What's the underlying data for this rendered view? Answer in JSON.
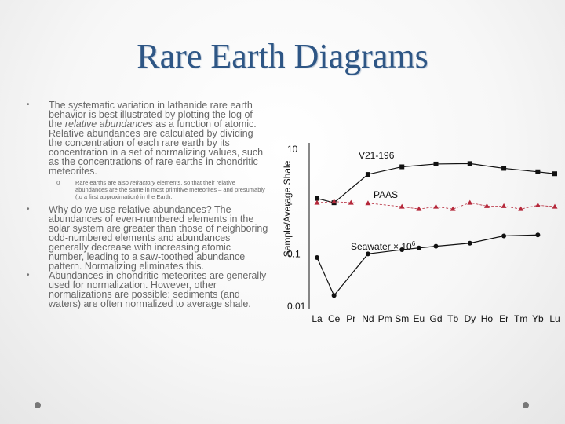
{
  "slide": {
    "title": "Rare Earth Diagrams",
    "bullet1_a": "The systematic variation in lathanide rare earth behavior is best illustrated by plotting the log of the ",
    "bullet1_em": "relative abundances",
    "bullet1_b": " as a function of atomic. Relative abundances are calculated by dividing the concentration of each rare earth by its concentration in a set of normalizing values, such as the concentrations of rare earths in chondritic meteorites.",
    "sub_a": "Rare earths are also ",
    "sub_em": "refractory",
    "sub_b": " elements, so that their relative abundances are the same in most primitive meteorites – and presumably (to a first approximation) in the Earth.",
    "bullet2": "Why do we use relative abundances? The abundances of even-numbered elements in the solar system are greater than those of neighboring odd-numbered elements and abundances generally decrease with increasing atomic number, leading to a saw-toothed abundance pattern. Normalizing eliminates this.",
    "bullet3": "Abundances in chondritic meteorites are generally used for normalization. However, other normalizations are possible: sediments (and waters) are often normalized to average shale.",
    "bullet_glyph": "•",
    "sub_glyph": "o"
  },
  "chart_data": {
    "type": "line",
    "x": [
      "La",
      "Ce",
      "Pr",
      "Nd",
      "Pm",
      "Sm",
      "Eu",
      "Gd",
      "Tb",
      "Dy",
      "Ho",
      "Er",
      "Tm",
      "Yb",
      "Lu"
    ],
    "ylabel": "Sample/Average Shale",
    "y_scale": "log",
    "ylim": [
      0.01,
      10
    ],
    "yticks": [
      "10",
      "1",
      "0.1",
      "0.01"
    ],
    "series": [
      {
        "name": "V21-196",
        "color": "#111111",
        "marker": "square",
        "points": [
          [
            "La",
            1.15
          ],
          [
            "Ce",
            0.95
          ],
          [
            "Nd",
            3.3
          ],
          [
            "Sm",
            4.6
          ],
          [
            "Gd",
            5.2
          ],
          [
            "Dy",
            5.3
          ],
          [
            "Er",
            4.3
          ],
          [
            "Yb",
            3.7
          ],
          [
            "Lu",
            3.4
          ]
        ]
      },
      {
        "name": "PAAS",
        "color": "#b5283a",
        "marker": "triangle",
        "points": [
          [
            "La",
            0.95
          ],
          [
            "Ce",
            1.0
          ],
          [
            "Pr",
            0.95
          ],
          [
            "Nd",
            0.93
          ],
          [
            "Sm",
            0.8
          ],
          [
            "Eu",
            0.72
          ],
          [
            "Gd",
            0.8
          ],
          [
            "Tb",
            0.72
          ],
          [
            "Dy",
            0.95
          ],
          [
            "Ho",
            0.82
          ],
          [
            "Er",
            0.82
          ],
          [
            "Tm",
            0.72
          ],
          [
            "Yb",
            0.85
          ],
          [
            "Lu",
            0.8
          ]
        ]
      },
      {
        "name": "Seawater × 10",
        "superscript": "6",
        "color": "#111111",
        "marker": "circle",
        "points": [
          [
            "La",
            0.085
          ],
          [
            "Ce",
            0.016
          ],
          [
            "Nd",
            0.1
          ],
          [
            "Sm",
            0.12
          ],
          [
            "Eu",
            0.13
          ],
          [
            "Gd",
            0.14
          ],
          [
            "Dy",
            0.16
          ],
          [
            "Er",
            0.22
          ],
          [
            "Yb",
            0.23
          ]
        ]
      }
    ]
  }
}
